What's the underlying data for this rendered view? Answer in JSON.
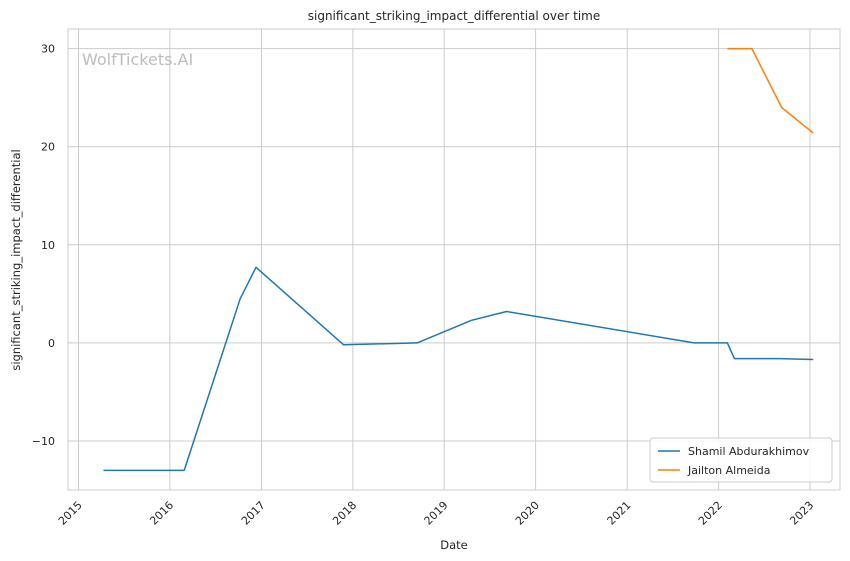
{
  "chart_data": {
    "type": "line",
    "title": "significant_striking_impact_differential over time",
    "xlabel": "Date",
    "ylabel": "significant_striking_impact_differential",
    "watermark": "WolfTickets.AI",
    "x_ticks": [
      "2015",
      "2016",
      "2017",
      "2018",
      "2019",
      "2020",
      "2021",
      "2022",
      "2023"
    ],
    "y_ticks": [
      -10,
      0,
      10,
      20,
      30
    ],
    "xlim": [
      "2014-11-20",
      "2023-05-01"
    ],
    "ylim": [
      -15,
      32
    ],
    "grid": true,
    "legend_position": "bottom-right",
    "series": [
      {
        "name": "Shamil Abdurakhimov",
        "color": "#1f77b4",
        "points": [
          [
            "2015-04-11",
            -13.0
          ],
          [
            "2016-02-27",
            -13.0
          ],
          [
            "2016-10-08",
            4.5
          ],
          [
            "2016-12-10",
            7.7
          ],
          [
            "2017-11-25",
            -0.2
          ],
          [
            "2018-09-15",
            0.0
          ],
          [
            "2019-04-20",
            2.3
          ],
          [
            "2019-09-07",
            3.2
          ],
          [
            "2021-09-25",
            0.0
          ],
          [
            "2022-02-05",
            0.0
          ],
          [
            "2022-03-05",
            -1.6
          ],
          [
            "2022-09-03",
            -1.6
          ],
          [
            "2023-01-14",
            -1.7
          ]
        ]
      },
      {
        "name": "Jailton Almeida",
        "color": "#ff7f0e",
        "points": [
          [
            "2022-02-05",
            30.0
          ],
          [
            "2022-05-14",
            30.0
          ],
          [
            "2022-09-10",
            24.0
          ],
          [
            "2023-01-14",
            21.4
          ]
        ]
      }
    ]
  }
}
